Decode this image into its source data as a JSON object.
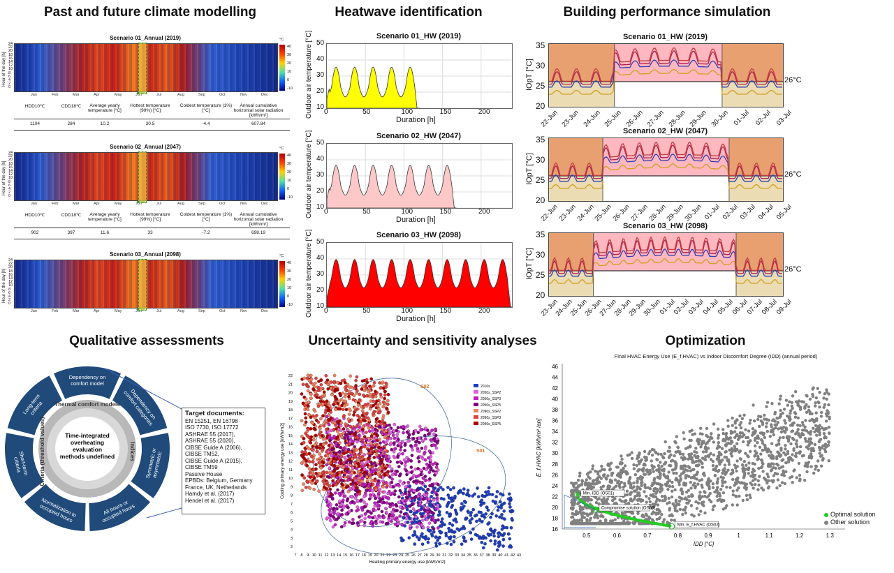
{
  "sections": {
    "climate": "Past and future climate modelling",
    "heatwave": "Heatwave identification",
    "building": "Building performance simulation",
    "qualitative": "Qualitative assessments",
    "uncertainty": "Uncertainty and sensitivity analyses",
    "optimization": "Optimization"
  },
  "heatmaps": [
    {
      "title": "Scenario 01_Annual (2019)",
      "vals": [
        "1104",
        "284",
        "10.2",
        "30.5",
        "-4.4",
        "607.84"
      ]
    },
    {
      "title": "Scenario 02_Annual (2047)",
      "vals": [
        "902",
        "397",
        "11.6",
        "33",
        "-7.2",
        "698.19"
      ]
    },
    {
      "title": "Scenario 03_Annual (2098)",
      "vals": []
    }
  ],
  "heatmap_common": {
    "months": [
      "Jan",
      "Feb",
      "Mar",
      "Apr",
      "May",
      "Jun",
      "Jul",
      "Aug",
      "Sep",
      "Oct",
      "Nov",
      "Dec"
    ],
    "ylabel": "Hour of the day [h]",
    "hw": "HW",
    "unit": "°C",
    "colorbar_ticks": [
      "40",
      "30",
      "20",
      "10",
      "0",
      "-10"
    ],
    "yticks": [
      "24",
      "22",
      "20",
      "18",
      "16",
      "14",
      "12",
      "10",
      "8",
      "6",
      "4",
      "2",
      "0"
    ],
    "stat_heads": [
      "HDD10℃",
      "CDD18℃",
      "Average yearly temperature [°C]",
      "Hottest temperature (99%) [°C]",
      "Coldest temperature (1%) [°C]",
      "Annual cumulative horizontal solar radiation [kWh/m²]"
    ]
  },
  "heatwave": {
    "xlabel": "Duration [h]",
    "ylabel": "Outdoor air temperature [°C]",
    "xticks": [
      "0",
      "50",
      "100",
      "150",
      "200"
    ],
    "yticks": [
      "50",
      "40",
      "30",
      "20",
      "10"
    ],
    "charts": [
      {
        "title": "Scenario 01_HW (2019)",
        "color": "#ffff00",
        "hours": 120
      },
      {
        "title": "Scenario 02_HW (2047)",
        "color": "#ffc8c8",
        "hours": 168
      },
      {
        "title": "Scenario 03_HW (2098)",
        "color": "#ff0000",
        "hours": 240
      }
    ]
  },
  "building": {
    "ylabel": "IOpT [°C]",
    "yticks": [
      "35",
      "30",
      "25",
      "20"
    ],
    "threshold": "26°C",
    "charts": [
      {
        "title": "Scenario 01_HW (2019)",
        "dates": [
          "22-Jun",
          "23-Jun",
          "24-Jun",
          "25-Jun",
          "26-Jun",
          "27-Jun",
          "28-Jun",
          "29-Jun",
          "30-Jun",
          "01-Jul",
          "02-Jul",
          "03-Jul"
        ]
      },
      {
        "title": "Scenario 02_HW (2047)",
        "dates": [
          "22-Jun",
          "23-Jun",
          "24-Jun",
          "25-Jun",
          "26-Jun",
          "27-Jun",
          "28-Jun",
          "29-Jun",
          "30-Jun",
          "01-Jul",
          "02-Jul",
          "03-Jul",
          "04-Jul",
          "05-Jul"
        ]
      },
      {
        "title": "Scenario 03_HW (2098)",
        "dates": [
          "23-Jun",
          "24-Jun",
          "25-Jun",
          "26-Jun",
          "27-Jun",
          "28-Jun",
          "29-Jun",
          "30-Jun",
          "01-Jul",
          "02-Jul",
          "03-Jul",
          "04-Jul",
          "05-Jul",
          "06-Jul",
          "07-Jul",
          "08-Jul",
          "09-Jul"
        ]
      }
    ]
  },
  "qualitative": {
    "center": "Time-integrated overheating evaluation methods",
    "inner": [
      "Thermal comfort models",
      "Indices",
      "Criteria (threshold values)"
    ],
    "outer": [
      "Dependency on comfort model",
      "Dependency on comfort categories",
      "Symmetric or asymmetric",
      "All hours or occupied hours",
      "Normalization to occupied hours",
      "Short-term criteria",
      "Long-term criteria"
    ],
    "target_title": "Target documents:",
    "target_lines": [
      "EN 15251, EN 16798",
      "ISO 7730, ISO 17772",
      "ASHRAE 55 (2017),",
      "ASHRAE 55 (2020),",
      "CIBSE Guide A (2006),",
      "CIBSE TM52,",
      "CIBSE Guide A (2015),",
      "CIBSE TM59",
      "Passive House",
      "EPBDs: Belgium, Germany",
      "France, UK, Netherlands",
      "Hamdy et al. (2017)",
      "Hendel et al. (2017)"
    ]
  },
  "uncertainty": {
    "xlabel": "Heating primary energy use [kWh/m2]",
    "ylabel": "Cooling primary energy use [kWh/m2]",
    "s01": "S01",
    "s02": "S02",
    "legend": [
      {
        "name": "2010s",
        "color": "#1f3fbf"
      },
      {
        "name": "2050s_SSP2",
        "color": "#e060e0"
      },
      {
        "name": "2050s_SSP3",
        "color": "#c020c0"
      },
      {
        "name": "2050s_SSP5",
        "color": "#800080"
      },
      {
        "name": "2090s_SSP2",
        "color": "#f08060"
      },
      {
        "name": "2090s_SSP3",
        "color": "#e04040"
      },
      {
        "name": "2090s_SSP5",
        "color": "#b00000"
      }
    ],
    "xticks": [
      "7",
      "8",
      "9",
      "10",
      "11",
      "12",
      "13",
      "14",
      "15",
      "16",
      "17",
      "18",
      "19",
      "20",
      "21",
      "22",
      "23",
      "24",
      "25",
      "26",
      "27",
      "28",
      "29",
      "30",
      "31",
      "32",
      "33",
      "34",
      "35",
      "36",
      "37",
      "38",
      "39",
      "40",
      "41",
      "42",
      "43"
    ],
    "yticks": [
      "22",
      "21",
      "20",
      "19",
      "18",
      "17",
      "16",
      "15",
      "14",
      "13",
      "12",
      "11",
      "10",
      "9",
      "8",
      "7",
      "6",
      "5",
      "4",
      "3",
      "2"
    ]
  },
  "optimization": {
    "title": "Final HVAC Energy Use (E_f,HVAC) vs Indoor Discomfort Degree (IDD) (annual period)",
    "ylabel": "E_f,HVAC [kWh/m² /an]",
    "xlabel": "IDD [°C]",
    "xticks": [
      "0.5",
      "0.6",
      "0.7",
      "0.8",
      "0.9",
      "1",
      "1.1",
      "1.2",
      "1.3"
    ],
    "yticks": [
      "46",
      "44",
      "42",
      "40",
      "38",
      "36",
      "34",
      "32",
      "30",
      "28",
      "26",
      "24",
      "22",
      "20",
      "18",
      "16"
    ],
    "ann": [
      "Min. IDD (OS01)",
      "Compromise solution (OS03)",
      "Min. E_f,HVAC (OS02)"
    ],
    "legend": [
      "Optimal solution",
      "Other solution"
    ],
    "legend_colors": [
      "#22cc22",
      "#808080"
    ]
  }
}
